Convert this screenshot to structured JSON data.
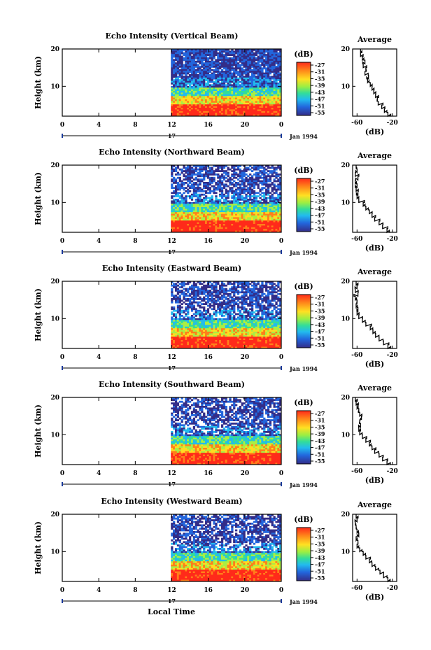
{
  "figure": {
    "x_axis_label": "Local Time",
    "date_label": "Jan 1994",
    "day_label": "17",
    "colorbar_unit": "(dB)",
    "average_title": "Average",
    "average_xlabel": "(dB)",
    "ylabel": "Height (km)"
  },
  "chart_data": [
    {
      "type": "heatmap",
      "title": "Echo Intensity (Vertical Beam)",
      "xlabel": "Local Time",
      "ylabel": "Height (km)",
      "x_ticks": [
        "0",
        "4",
        "8",
        "12",
        "16",
        "20",
        "0"
      ],
      "y_ticks": [
        "20",
        "10"
      ],
      "xlim": [
        0,
        24
      ],
      "ylim": [
        2,
        20
      ],
      "data_start_hour": 11.9,
      "colorbar": {
        "unit": "(dB)",
        "ticks": [
          "-27",
          "-31",
          "-35",
          "-39",
          "-43",
          "-47",
          "-51",
          "-55"
        ],
        "colors": [
          "#ff2a1a",
          "#ff7f1a",
          "#ffdd22",
          "#aaee44",
          "#33dd99",
          "#22bbee",
          "#2266dd",
          "#332d88"
        ]
      },
      "average": {
        "title": "Average",
        "xlabel": "(dB)",
        "x_ticks": [
          "-60",
          "-20"
        ],
        "y_ticks": [
          "20",
          "10"
        ],
        "xlim": [
          -65,
          -15
        ],
        "height_km": [
          2,
          3,
          4,
          5,
          6,
          7,
          8,
          9,
          10,
          11,
          12,
          13,
          14,
          15,
          16,
          17,
          18,
          19,
          20
        ],
        "values_db": [
          -22,
          -25,
          -29,
          -32,
          -36,
          -37,
          -39,
          -41,
          -43,
          -45,
          -48,
          -47,
          -51,
          -50,
          -53,
          -51,
          -54,
          -56,
          -56
        ]
      }
    },
    {
      "type": "heatmap",
      "title": "Echo Intensity (Northward Beam)",
      "xlabel": "Local Time",
      "ylabel": "Height (km)",
      "x_ticks": [
        "0",
        "4",
        "8",
        "12",
        "16",
        "20",
        "0"
      ],
      "y_ticks": [
        "20",
        "10"
      ],
      "xlim": [
        0,
        24
      ],
      "ylim": [
        2,
        20
      ],
      "data_start_hour": 11.9,
      "colorbar": {
        "unit": "(dB)",
        "ticks": [
          "-27",
          "-31",
          "-35",
          "-39",
          "-43",
          "-47",
          "-51",
          "-55"
        ],
        "colors": [
          "#ff2a1a",
          "#ff7f1a",
          "#ffdd22",
          "#aaee44",
          "#33dd99",
          "#22bbee",
          "#2266dd",
          "#332d88"
        ]
      },
      "average": {
        "title": "Average",
        "xlabel": "(dB)",
        "x_ticks": [
          "-60",
          "-20"
        ],
        "y_ticks": [
          "20",
          "10"
        ],
        "xlim": [
          -65,
          -15
        ],
        "height_km": [
          2,
          3,
          4,
          5,
          6,
          7,
          8,
          9,
          10,
          11,
          12,
          13,
          14,
          15,
          16,
          17,
          18,
          19,
          20
        ],
        "values_db": [
          -22,
          -26,
          -31,
          -35,
          -40,
          -43,
          -46,
          -50,
          -53,
          -58,
          -60,
          -59,
          -61,
          -60,
          -62,
          -59,
          -62,
          -60,
          -61
        ]
      }
    },
    {
      "type": "heatmap",
      "title": "Echo Intensity (Eastward Beam)",
      "xlabel": "Local Time",
      "ylabel": "Height (km)",
      "x_ticks": [
        "0",
        "4",
        "8",
        "12",
        "16",
        "20",
        "0"
      ],
      "y_ticks": [
        "20",
        "10"
      ],
      "xlim": [
        0,
        24
      ],
      "ylim": [
        2,
        20
      ],
      "data_start_hour": 11.9,
      "colorbar": {
        "unit": "(dB)",
        "ticks": [
          "-27",
          "-31",
          "-35",
          "-39",
          "-43",
          "-47",
          "-51",
          "-55"
        ],
        "colors": [
          "#ff2a1a",
          "#ff7f1a",
          "#ffdd22",
          "#aaee44",
          "#33dd99",
          "#22bbee",
          "#2266dd",
          "#332d88"
        ]
      },
      "average": {
        "title": "Average",
        "xlabel": "(dB)",
        "x_ticks": [
          "-60",
          "-20"
        ],
        "y_ticks": [
          "20",
          "10"
        ],
        "xlim": [
          -65,
          -15
        ],
        "height_km": [
          2,
          3,
          4,
          5,
          6,
          7,
          8,
          9,
          10,
          11,
          12,
          13,
          14,
          15,
          16,
          17,
          18,
          19,
          20
        ],
        "values_db": [
          -22,
          -25,
          -30,
          -35,
          -39,
          -42,
          -45,
          -50,
          -54,
          -58,
          -60,
          -59,
          -61,
          -60,
          -62,
          -59,
          -62,
          -60,
          -61
        ]
      }
    },
    {
      "type": "heatmap",
      "title": "Echo Intensity (Southward Beam)",
      "xlabel": "Local Time",
      "ylabel": "Height (km)",
      "x_ticks": [
        "0",
        "4",
        "8",
        "12",
        "16",
        "20",
        "0"
      ],
      "y_ticks": [
        "20",
        "10"
      ],
      "xlim": [
        0,
        24
      ],
      "ylim": [
        2,
        20
      ],
      "data_start_hour": 11.9,
      "colorbar": {
        "unit": "(dB)",
        "ticks": [
          "-27",
          "-31",
          "-35",
          "-39",
          "-43",
          "-47",
          "-51",
          "-55"
        ],
        "colors": [
          "#ff2a1a",
          "#ff7f1a",
          "#ffdd22",
          "#aaee44",
          "#33dd99",
          "#22bbee",
          "#2266dd",
          "#332d88"
        ]
      },
      "average": {
        "title": "Average",
        "xlabel": "(dB)",
        "x_ticks": [
          "-60",
          "-20"
        ],
        "y_ticks": [
          "20",
          "10"
        ],
        "xlim": [
          -65,
          -15
        ],
        "height_km": [
          2,
          3,
          4,
          5,
          6,
          7,
          8,
          9,
          10,
          11,
          12,
          13,
          14,
          15,
          16,
          17,
          18,
          19,
          20
        ],
        "values_db": [
          -22,
          -26,
          -31,
          -35,
          -40,
          -43,
          -46,
          -50,
          -54,
          -57,
          -58,
          -56,
          -57,
          -55,
          -57,
          -58,
          -60,
          -61,
          -62
        ]
      }
    },
    {
      "type": "heatmap",
      "title": "Echo Intensity (Westward Beam)",
      "xlabel": "Local Time",
      "ylabel": "Height (km)",
      "x_ticks": [
        "0",
        "4",
        "8",
        "12",
        "16",
        "20",
        "0"
      ],
      "y_ticks": [
        "20",
        "10"
      ],
      "xlim": [
        0,
        24
      ],
      "ylim": [
        2,
        20
      ],
      "data_start_hour": 11.9,
      "colorbar": {
        "unit": "(dB)",
        "ticks": [
          "-27",
          "-31",
          "-35",
          "-39",
          "-43",
          "-47",
          "-51",
          "-55"
        ],
        "colors": [
          "#ff2a1a",
          "#ff7f1a",
          "#ffdd22",
          "#aaee44",
          "#33dd99",
          "#22bbee",
          "#2266dd",
          "#332d88"
        ]
      },
      "average": {
        "title": "Average",
        "xlabel": "(dB)",
        "x_ticks": [
          "-60",
          "-20"
        ],
        "y_ticks": [
          "20",
          "10"
        ],
        "xlim": [
          -65,
          -15
        ],
        "height_km": [
          2,
          3,
          4,
          5,
          6,
          7,
          8,
          9,
          10,
          11,
          12,
          13,
          14,
          15,
          16,
          17,
          18,
          19,
          20
        ],
        "values_db": [
          -22,
          -25,
          -30,
          -34,
          -39,
          -43,
          -46,
          -50,
          -53,
          -57,
          -60,
          -59,
          -61,
          -58,
          -60,
          -61,
          -62,
          -60,
          -61
        ]
      }
    }
  ]
}
